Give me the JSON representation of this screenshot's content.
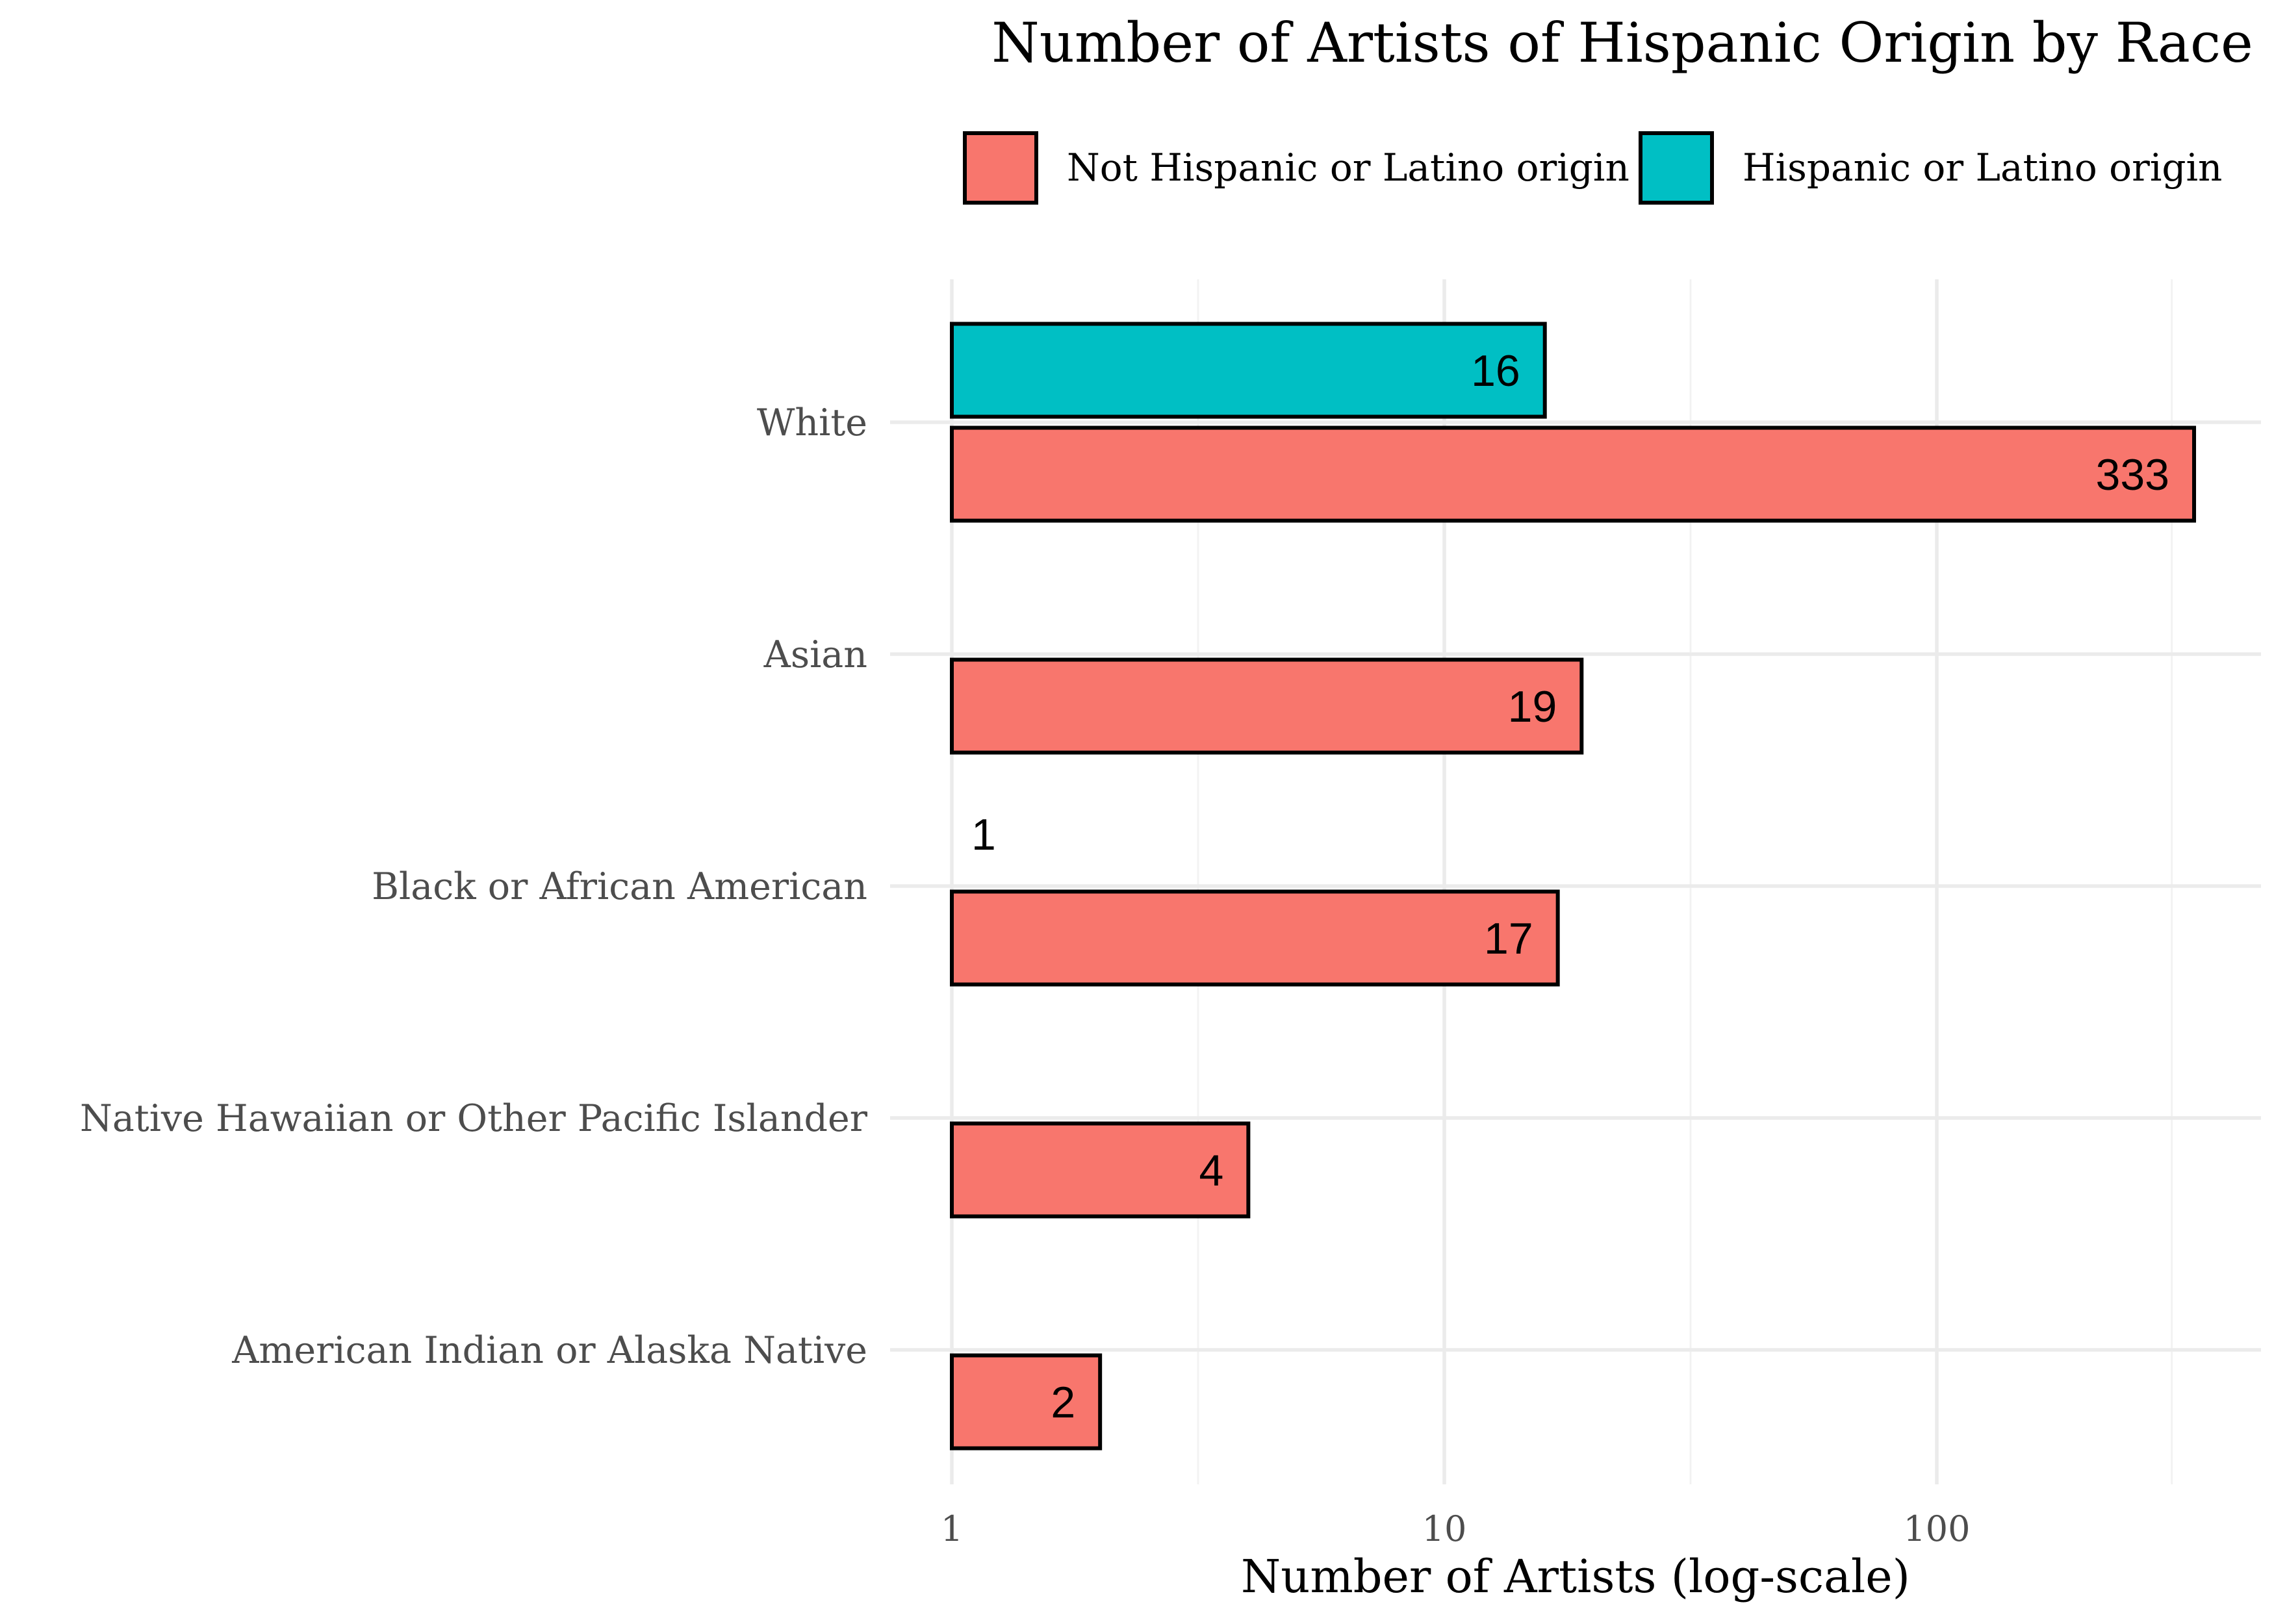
{
  "chart_data": {
    "type": "bar",
    "orientation": "horizontal",
    "title": "Number of Artists of Hispanic Origin by Race",
    "xlabel": "Number of Artists (log-scale)",
    "ylabel": "",
    "x_scale": "log10",
    "xlim": [
      1,
      400
    ],
    "x_ticks": [
      {
        "value": 1,
        "label": "1"
      },
      {
        "value": 10,
        "label": "10"
      },
      {
        "value": 100,
        "label": "100"
      }
    ],
    "grid": true,
    "legend_position": "top",
    "categories": [
      "White",
      "Asian",
      "Black or African American",
      "Native Hawaiian or Other Pacific Islander",
      "American Indian or Alaska Native"
    ],
    "series": [
      {
        "name": "Not Hispanic or Latino origin",
        "color": "#F8766D",
        "values": [
          333,
          19,
          17,
          4,
          2
        ],
        "labels": [
          "333",
          "19",
          "17",
          "4",
          "2"
        ]
      },
      {
        "name": "Hispanic or Latino origin",
        "color": "#00BFC4",
        "values": [
          16,
          null,
          1,
          null,
          null
        ],
        "labels": [
          "16",
          null,
          "1",
          null,
          null
        ]
      }
    ]
  }
}
